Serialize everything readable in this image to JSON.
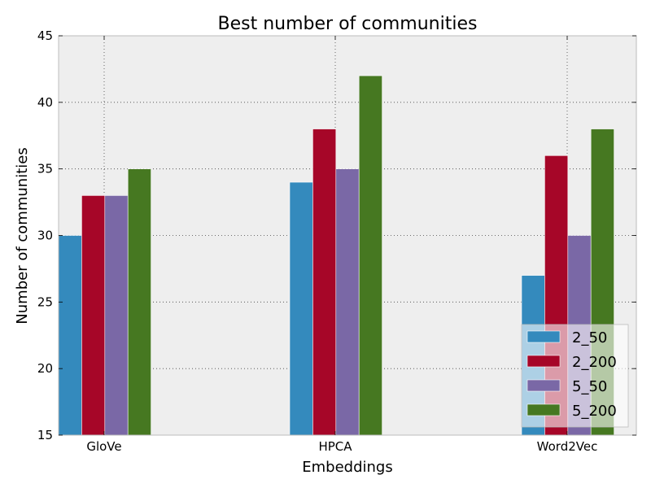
{
  "chart_data": {
    "type": "bar",
    "title": "Best number of communities",
    "xlabel": "Embeddings",
    "ylabel": "Number of communities",
    "categories": [
      "GloVe",
      "HPCA",
      "Word2Vec"
    ],
    "series": [
      {
        "name": "2_50",
        "values": [
          30,
          34,
          27
        ],
        "color": "#348abd"
      },
      {
        "name": "2_200",
        "values": [
          33,
          38,
          36
        ],
        "color": "#a60628"
      },
      {
        "name": "5_50",
        "values": [
          33,
          35,
          30
        ],
        "color": "#7a68a6"
      },
      {
        "name": "5_200",
        "values": [
          35,
          42,
          38
        ],
        "color": "#467821"
      }
    ],
    "ylim": [
      15,
      45
    ],
    "yticks": [
      "15",
      "20",
      "25",
      "30",
      "35",
      "40",
      "45"
    ],
    "grid": true,
    "legend_position": "lower-right",
    "background": "#eeeeee"
  }
}
